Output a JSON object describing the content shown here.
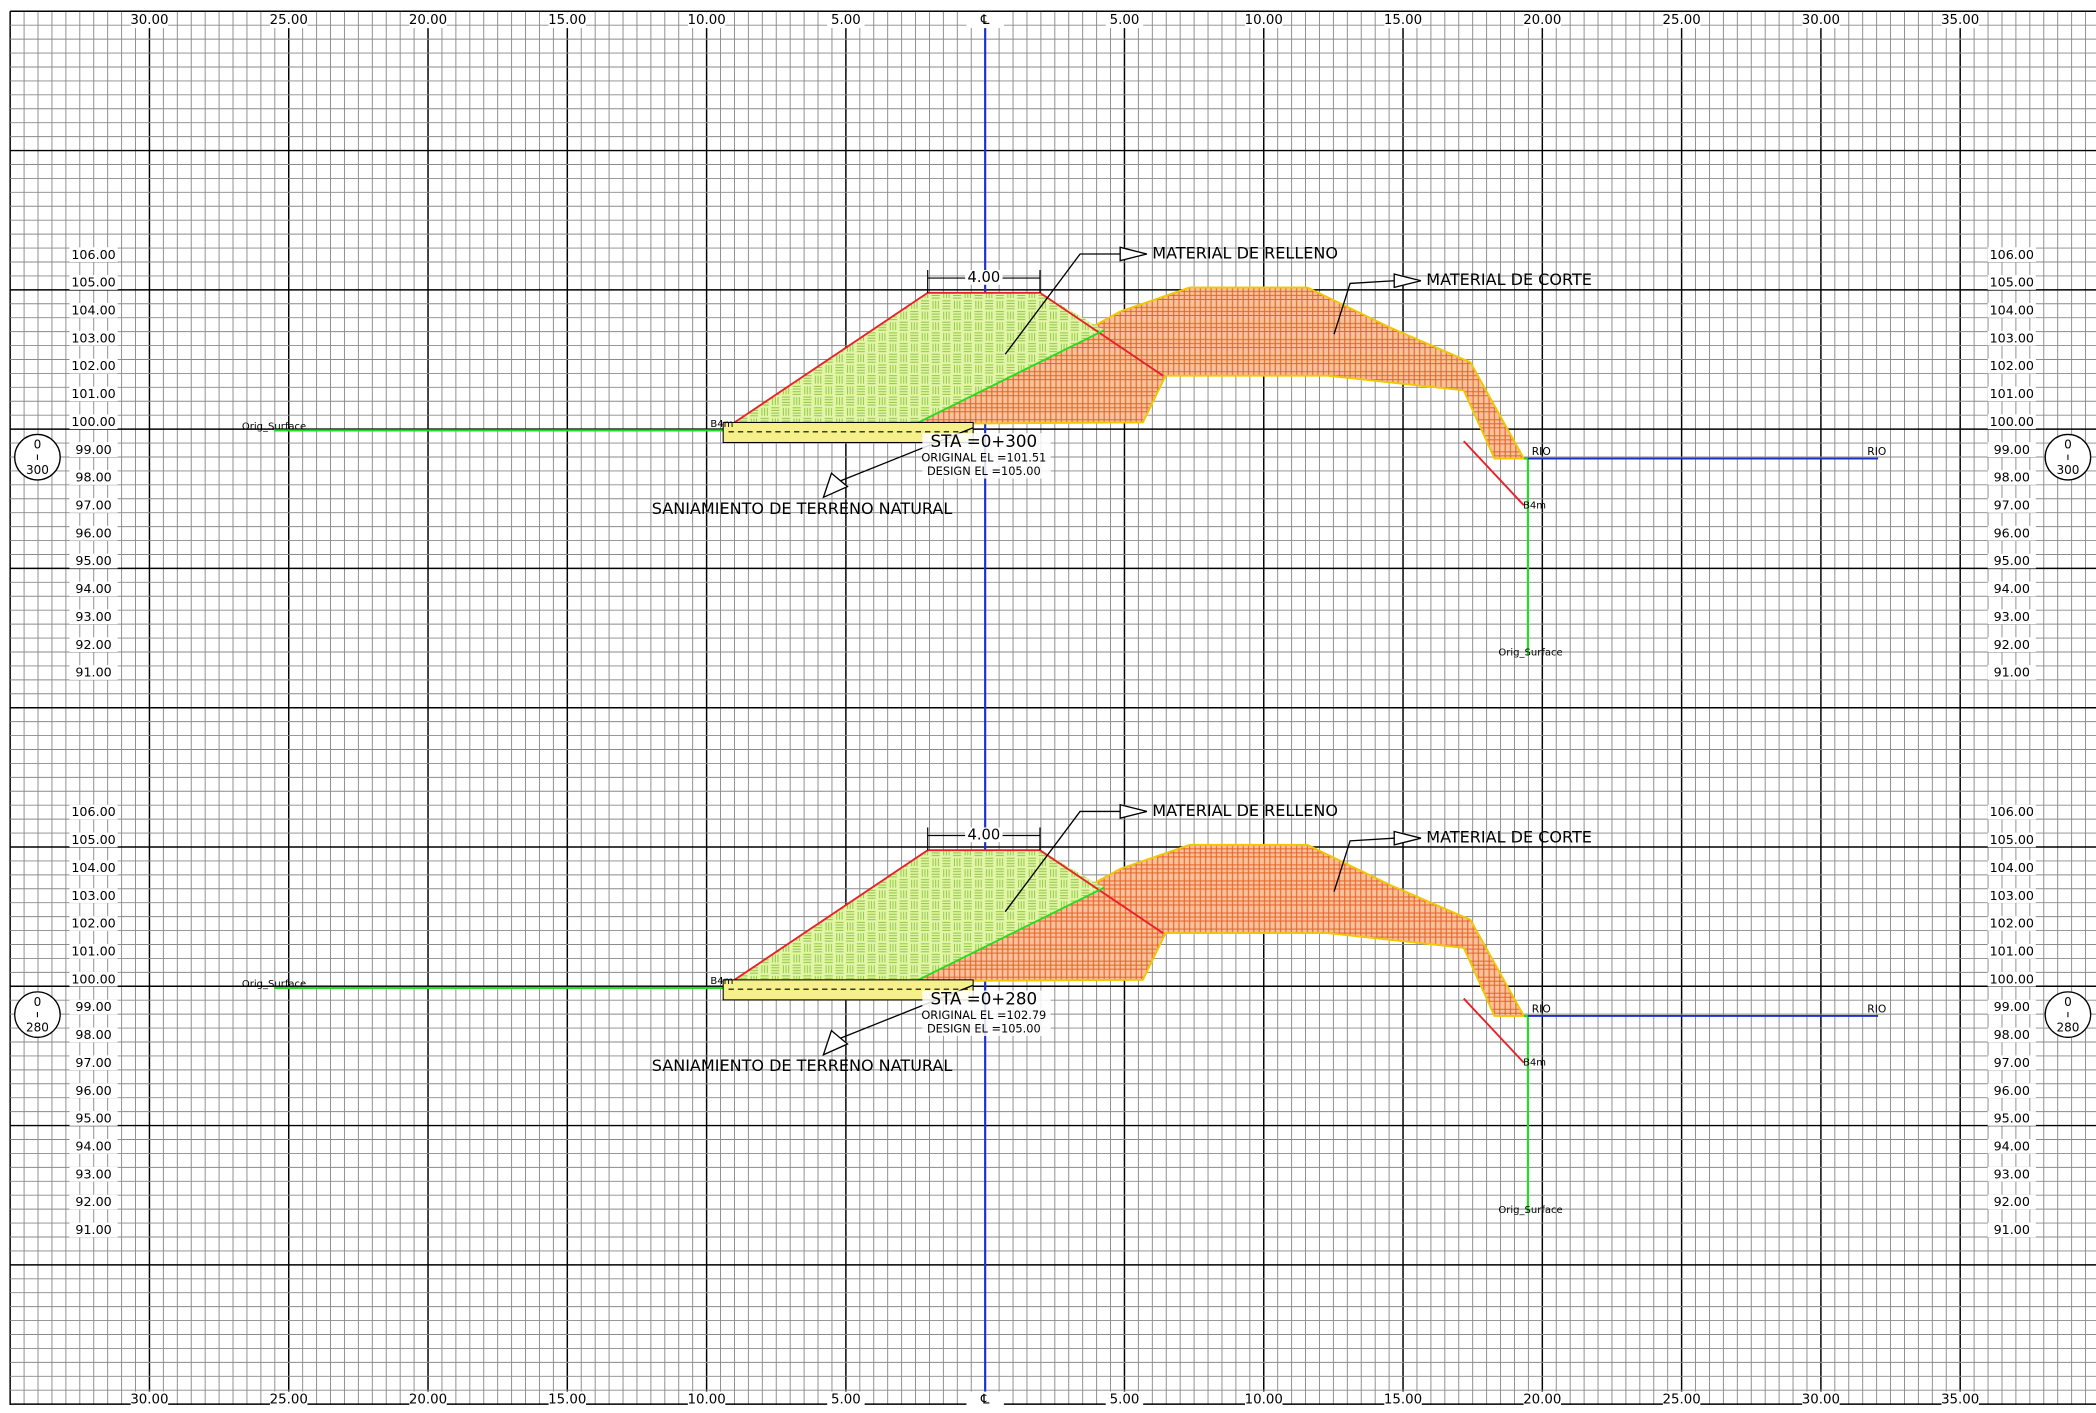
{
  "station_axis": [
    "30.00",
    "25.00",
    "20.00",
    "15.00",
    "10.00",
    "5.00",
    "℄",
    "5.00",
    "10.00",
    "15.00",
    "20.00",
    "25.00",
    "30.00",
    "35.00"
  ],
  "sections": [
    {
      "station": {
        "top": "0",
        "bottom": "300"
      },
      "elevations": [
        "106.00",
        "105.00",
        "104.00",
        "103.00",
        "102.00",
        "101.00",
        "100.00",
        "99.00",
        "98.00",
        "97.00",
        "96.00",
        "95.00",
        "94.00",
        "93.00",
        "92.00",
        "91.00"
      ],
      "dimension": "4.00",
      "fill_label": "MATERIAL DE RELLENO",
      "cut_label": "MATERIAL DE CORTE",
      "sanitation_label": "SANIAMIENTO DE TERRENO NATURAL",
      "sta": "STA =0+300",
      "original_el": "ORIGINAL EL =101.51",
      "design_el": "DESIGN EL =105.00",
      "orig_surface_left": "Orig_Surface",
      "orig_surface_right": "Orig_Surface",
      "slope_left": "B4m",
      "slope_right": "B4m",
      "river_left": "RIO",
      "river_right": "RIO"
    },
    {
      "station": {
        "top": "0",
        "bottom": "280"
      },
      "elevations": [
        "106.00",
        "105.00",
        "104.00",
        "103.00",
        "102.00",
        "101.00",
        "100.00",
        "99.00",
        "98.00",
        "97.00",
        "96.00",
        "95.00",
        "94.00",
        "93.00",
        "92.00",
        "91.00"
      ],
      "dimension": "4.00",
      "fill_label": "MATERIAL DE RELLENO",
      "cut_label": "MATERIAL DE CORTE",
      "sanitation_label": "SANIAMIENTO DE TERRENO NATURAL",
      "sta": "STA =0+280",
      "original_el": "ORIGINAL EL =102.79",
      "design_el": "DESIGN EL =105.00",
      "orig_surface_left": "Orig_Surface",
      "orig_surface_right": "Orig_Surface",
      "slope_left": "B4m",
      "slope_right": "B4m",
      "river_left": "RIO",
      "river_right": "RIO"
    }
  ]
}
